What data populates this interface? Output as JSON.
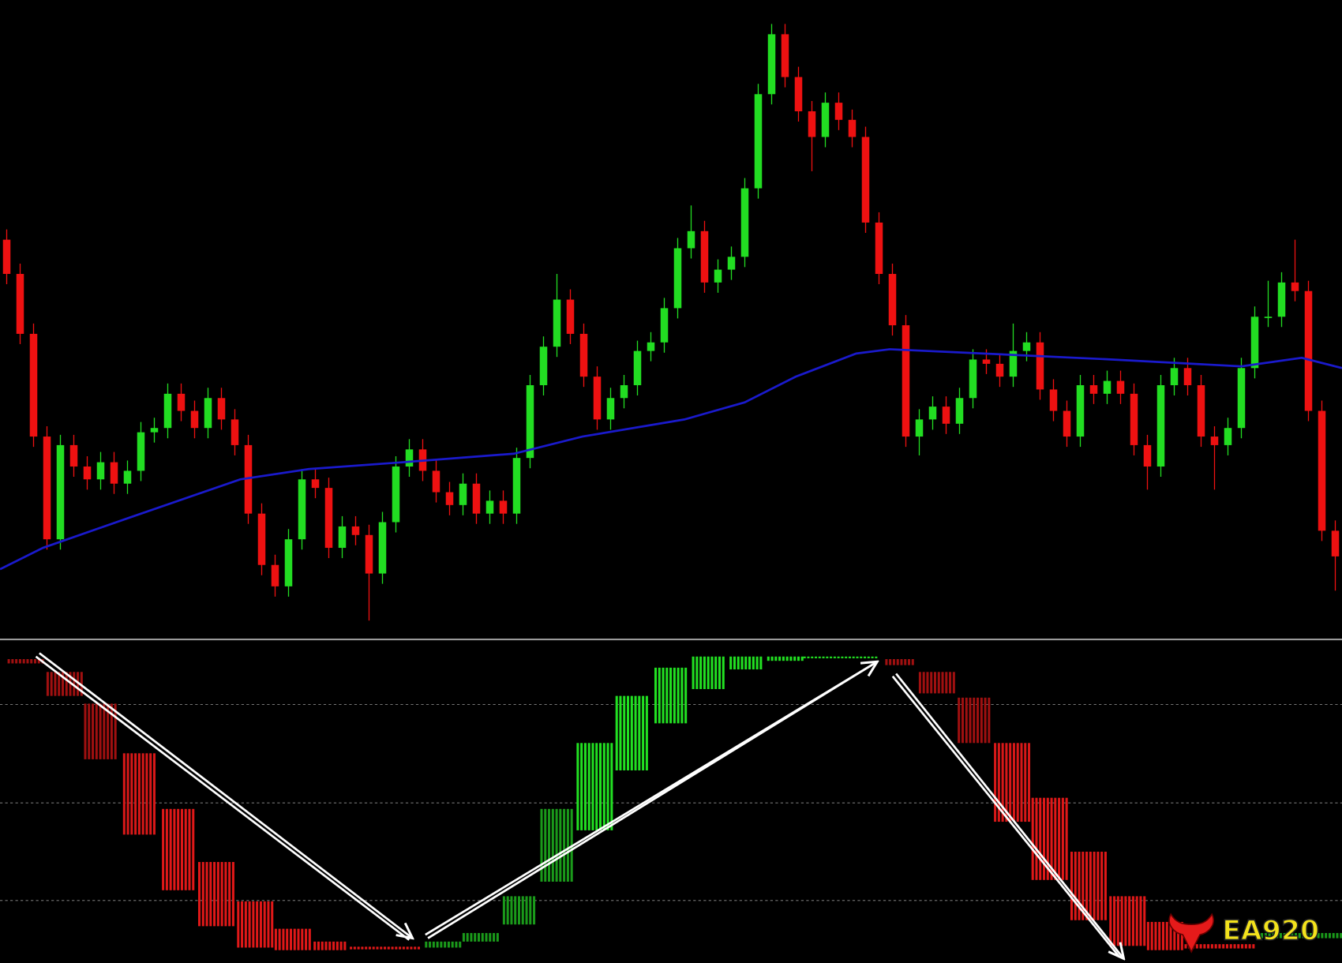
{
  "chart_data": [
    {
      "type": "candlestick",
      "xlim": [
        -0.5,
        99.5
      ],
      "ylim": [
        0,
        745
      ],
      "up_color": "#22dd22",
      "down_color": "#ee1111",
      "candles": [
        [
          465,
          477,
          413,
          425
        ],
        [
          425,
          437,
          343,
          355
        ],
        [
          355,
          367,
          223,
          235
        ],
        [
          235,
          247,
          103,
          115
        ],
        [
          115,
          237,
          103,
          225
        ],
        [
          225,
          237,
          188,
          200
        ],
        [
          200,
          212,
          173,
          185
        ],
        [
          185,
          217,
          173,
          205
        ],
        [
          205,
          217,
          168,
          180
        ],
        [
          180,
          207,
          168,
          195
        ],
        [
          195,
          252,
          183,
          240
        ],
        [
          240,
          257,
          228,
          245
        ],
        [
          245,
          297,
          233,
          285
        ],
        [
          285,
          297,
          253,
          265
        ],
        [
          265,
          277,
          233,
          245
        ],
        [
          245,
          292,
          233,
          280
        ],
        [
          280,
          292,
          243,
          255
        ],
        [
          255,
          267,
          213,
          225
        ],
        [
          225,
          237,
          133,
          145
        ],
        [
          145,
          157,
          73,
          85
        ],
        [
          85,
          97,
          48,
          60
        ],
        [
          60,
          127,
          48,
          115
        ],
        [
          115,
          197,
          103,
          185
        ],
        [
          185,
          197,
          163,
          175
        ],
        [
          175,
          187,
          93,
          105
        ],
        [
          105,
          142,
          93,
          130
        ],
        [
          130,
          142,
          108,
          120
        ],
        [
          120,
          132,
          20,
          75
        ],
        [
          75,
          147,
          63,
          135
        ],
        [
          135,
          212,
          123,
          200
        ],
        [
          200,
          232,
          188,
          220
        ],
        [
          220,
          232,
          183,
          195
        ],
        [
          195,
          207,
          158,
          170
        ],
        [
          170,
          182,
          143,
          155
        ],
        [
          155,
          192,
          143,
          180
        ],
        [
          180,
          192,
          133,
          145
        ],
        [
          145,
          172,
          133,
          160
        ],
        [
          160,
          172,
          133,
          145
        ],
        [
          145,
          222,
          133,
          210
        ],
        [
          210,
          307,
          198,
          295
        ],
        [
          295,
          352,
          283,
          340
        ],
        [
          340,
          425,
          328,
          395
        ],
        [
          395,
          407,
          343,
          355
        ],
        [
          355,
          367,
          293,
          305
        ],
        [
          305,
          317,
          243,
          255
        ],
        [
          255,
          292,
          243,
          280
        ],
        [
          280,
          307,
          268,
          295
        ],
        [
          295,
          347,
          283,
          335
        ],
        [
          335,
          357,
          323,
          345
        ],
        [
          345,
          397,
          333,
          385
        ],
        [
          385,
          467,
          373,
          455
        ],
        [
          455,
          505,
          443,
          475
        ],
        [
          475,
          487,
          403,
          415
        ],
        [
          415,
          442,
          403,
          430
        ],
        [
          430,
          457,
          418,
          445
        ],
        [
          445,
          537,
          433,
          525
        ],
        [
          525,
          647,
          513,
          635
        ],
        [
          635,
          717,
          623,
          705
        ],
        [
          705,
          717,
          643,
          655
        ],
        [
          655,
          667,
          603,
          615
        ],
        [
          615,
          627,
          545,
          585
        ],
        [
          585,
          637,
          573,
          625
        ],
        [
          625,
          637,
          593,
          605
        ],
        [
          605,
          617,
          573,
          585
        ],
        [
          585,
          597,
          473,
          485
        ],
        [
          485,
          497,
          413,
          425
        ],
        [
          425,
          437,
          353,
          365
        ],
        [
          365,
          377,
          223,
          235
        ],
        [
          235,
          267,
          213,
          255
        ],
        [
          255,
          282,
          243,
          270
        ],
        [
          270,
          282,
          238,
          250
        ],
        [
          250,
          292,
          238,
          280
        ],
        [
          280,
          337,
          268,
          325
        ],
        [
          325,
          337,
          308,
          320
        ],
        [
          320,
          332,
          293,
          305
        ],
        [
          305,
          367,
          293,
          335
        ],
        [
          335,
          357,
          323,
          345
        ],
        [
          345,
          357,
          278,
          290
        ],
        [
          290,
          302,
          253,
          265
        ],
        [
          265,
          277,
          223,
          235
        ],
        [
          235,
          307,
          223,
          295
        ],
        [
          295,
          307,
          273,
          285
        ],
        [
          285,
          312,
          273,
          300
        ],
        [
          300,
          312,
          273,
          285
        ],
        [
          285,
          297,
          213,
          225
        ],
        [
          225,
          237,
          173,
          200
        ],
        [
          200,
          307,
          188,
          295
        ],
        [
          295,
          327,
          283,
          315
        ],
        [
          315,
          327,
          283,
          295
        ],
        [
          295,
          307,
          223,
          235
        ],
        [
          235,
          247,
          173,
          225
        ],
        [
          225,
          257,
          213,
          245
        ],
        [
          245,
          327,
          233,
          315
        ],
        [
          315,
          387,
          303,
          375
        ],
        [
          375,
          417,
          363,
          375
        ],
        [
          375,
          427,
          363,
          415
        ],
        [
          415,
          465,
          393,
          405
        ],
        [
          405,
          417,
          253,
          265
        ],
        [
          265,
          277,
          113,
          125
        ],
        [
          125,
          137,
          55,
          95
        ]
      ],
      "ma": {
        "color": "#1a1acc",
        "x": [
          -0.5,
          2.7,
          9.1,
          17.4,
          22.5,
          29.5,
          37.8,
          42.9,
          50.5,
          55,
          58.8,
          63.3,
          65.8,
          72.8,
          82.4,
          92,
          96.5,
          99.5
        ],
        "values": [
          80,
          105,
          140,
          185,
          197,
          205,
          215,
          235,
          255,
          275,
          305,
          332,
          337,
          332,
          325,
          317,
          327,
          315
        ]
      }
    },
    {
      "type": "floating-histogram",
      "xlim": [
        -0.5,
        99.5
      ],
      "ylim": [
        0,
        350
      ],
      "grid_levels": [
        292,
        177,
        63
      ],
      "bars": [
        {
          "start": 0,
          "end": 2.9,
          "low": 340,
          "high": 345,
          "color": "#a01010"
        },
        {
          "start": 2.9,
          "end": 5.6,
          "low": 302,
          "high": 330,
          "color": "#a01010"
        },
        {
          "start": 5.7,
          "end": 8.3,
          "low": 228,
          "high": 293,
          "color": "#a01010"
        },
        {
          "start": 8.6,
          "end": 11.2,
          "low": 140,
          "high": 235,
          "color": "#d81818"
        },
        {
          "start": 11.5,
          "end": 14.0,
          "low": 75,
          "high": 170,
          "color": "#e01818"
        },
        {
          "start": 14.2,
          "end": 16.9,
          "low": 33,
          "high": 108,
          "color": "#e01818"
        },
        {
          "start": 17.1,
          "end": 19.8,
          "low": 8,
          "high": 62,
          "color": "#e01818"
        },
        {
          "start": 19.9,
          "end": 22.6,
          "low": 5,
          "high": 30,
          "color": "#e01818"
        },
        {
          "start": 22.8,
          "end": 25.3,
          "low": 5,
          "high": 15,
          "color": "#e01818"
        },
        {
          "start": 25.5,
          "end": 30.9,
          "low": 6,
          "high": 9,
          "color": "#e01818"
        },
        {
          "start": 31.1,
          "end": 33.8,
          "low": 8,
          "high": 15,
          "color": "#1a9a1a"
        },
        {
          "start": 33.9,
          "end": 36.7,
          "low": 15,
          "high": 25,
          "color": "#1a9a1a"
        },
        {
          "start": 36.9,
          "end": 39.5,
          "low": 35,
          "high": 68,
          "color": "#1a9a1a"
        },
        {
          "start": 39.7,
          "end": 42.3,
          "low": 85,
          "high": 170,
          "color": "#1a9a1a"
        },
        {
          "start": 42.4,
          "end": 45.1,
          "low": 145,
          "high": 247,
          "color": "#22e022"
        },
        {
          "start": 45.3,
          "end": 47.8,
          "low": 215,
          "high": 302,
          "color": "#22e022"
        },
        {
          "start": 48.2,
          "end": 50.7,
          "low": 270,
          "high": 335,
          "color": "#22e022"
        },
        {
          "start": 51.0,
          "end": 53.6,
          "low": 310,
          "high": 348,
          "color": "#22e022"
        },
        {
          "start": 53.8,
          "end": 56.4,
          "low": 333,
          "high": 348,
          "color": "#22e022"
        },
        {
          "start": 56.6,
          "end": 59.3,
          "low": 343,
          "high": 348,
          "color": "#22e022"
        },
        {
          "start": 59.3,
          "end": 64.9,
          "low": 346,
          "high": 348,
          "color": "#22e022"
        },
        {
          "start": 65.4,
          "end": 67.7,
          "low": 338,
          "high": 345,
          "color": "#a01010"
        },
        {
          "start": 67.9,
          "end": 70.6,
          "low": 305,
          "high": 330,
          "color": "#a01010"
        },
        {
          "start": 70.8,
          "end": 73.3,
          "low": 247,
          "high": 300,
          "color": "#a01010"
        },
        {
          "start": 73.5,
          "end": 76.2,
          "low": 155,
          "high": 247,
          "color": "#d81818"
        },
        {
          "start": 76.3,
          "end": 79.1,
          "low": 87,
          "high": 183,
          "color": "#e01818"
        },
        {
          "start": 79.2,
          "end": 82.0,
          "low": 40,
          "high": 120,
          "color": "#e01818"
        },
        {
          "start": 82.1,
          "end": 84.8,
          "low": 10,
          "high": 68,
          "color": "#e01818"
        },
        {
          "start": 84.9,
          "end": 87.7,
          "low": 5,
          "high": 38,
          "color": "#e01818"
        },
        {
          "start": 87.7,
          "end": 93.1,
          "low": 7,
          "high": 12,
          "color": "#e01818"
        },
        {
          "start": 93.1,
          "end": 100,
          "low": 19,
          "high": 25,
          "color": "#1a9a1a"
        }
      ]
    }
  ],
  "logo": "EA920"
}
